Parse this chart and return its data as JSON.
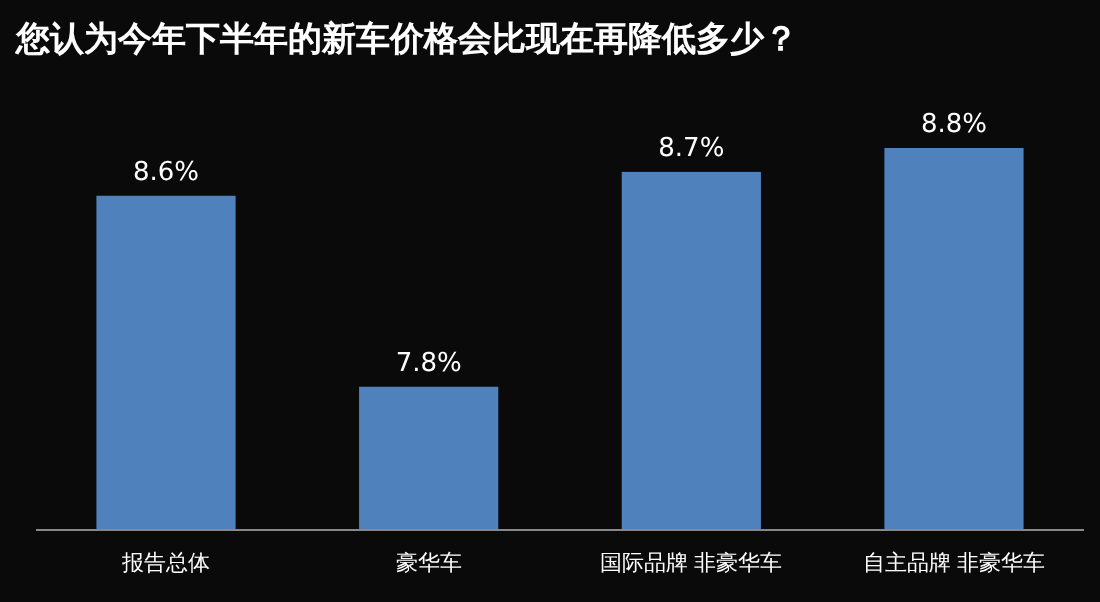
{
  "chart_data": {
    "type": "bar",
    "title": "您认为今年下半年的新车价格会比现在再降低多少？",
    "categories": [
      "报告总体",
      "豪华车",
      "国际品牌 非豪华车",
      "自主品牌 非豪华车"
    ],
    "values": [
      8.6,
      7.8,
      8.7,
      8.8
    ],
    "value_labels": [
      "8.6%",
      "7.8%",
      "8.7%",
      "8.8%"
    ],
    "color": "#4f81bd",
    "ylim": [
      7.2,
      8.8
    ],
    "tick_labels": "x"
  }
}
